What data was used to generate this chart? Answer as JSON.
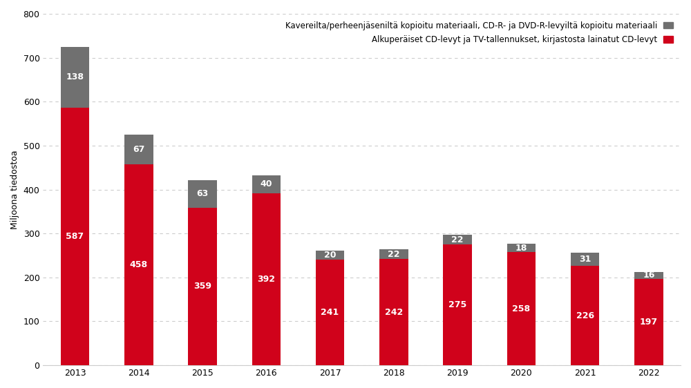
{
  "years": [
    "2013",
    "2014",
    "2015",
    "2016",
    "2017",
    "2018",
    "2019",
    "2020",
    "2021",
    "2022"
  ],
  "red_values": [
    587,
    458,
    359,
    392,
    241,
    242,
    275,
    258,
    226,
    197
  ],
  "gray_values": [
    138,
    67,
    63,
    40,
    20,
    22,
    22,
    18,
    31,
    16
  ],
  "red_color": "#d0021b",
  "gray_color": "#707070",
  "ylabel": "Miljoona tiedostoa",
  "ylim": [
    0,
    800
  ],
  "yticks": [
    0,
    100,
    200,
    300,
    400,
    500,
    600,
    700,
    800
  ],
  "background_color": "#ffffff",
  "legend_gray": "Kavereilta/perheenjäseniltä kopioitu materiaali, CD-R- ja DVD-R-levyiltä kopioitu materiaali",
  "legend_red": "Alkuperäiset CD-levyt ja TV-tallennukset, kirjastosta lainatut CD-levyt",
  "label_fontsize": 9,
  "axis_label_fontsize": 9,
  "legend_fontsize": 8.5,
  "tick_fontsize": 9,
  "bar_width": 0.45
}
